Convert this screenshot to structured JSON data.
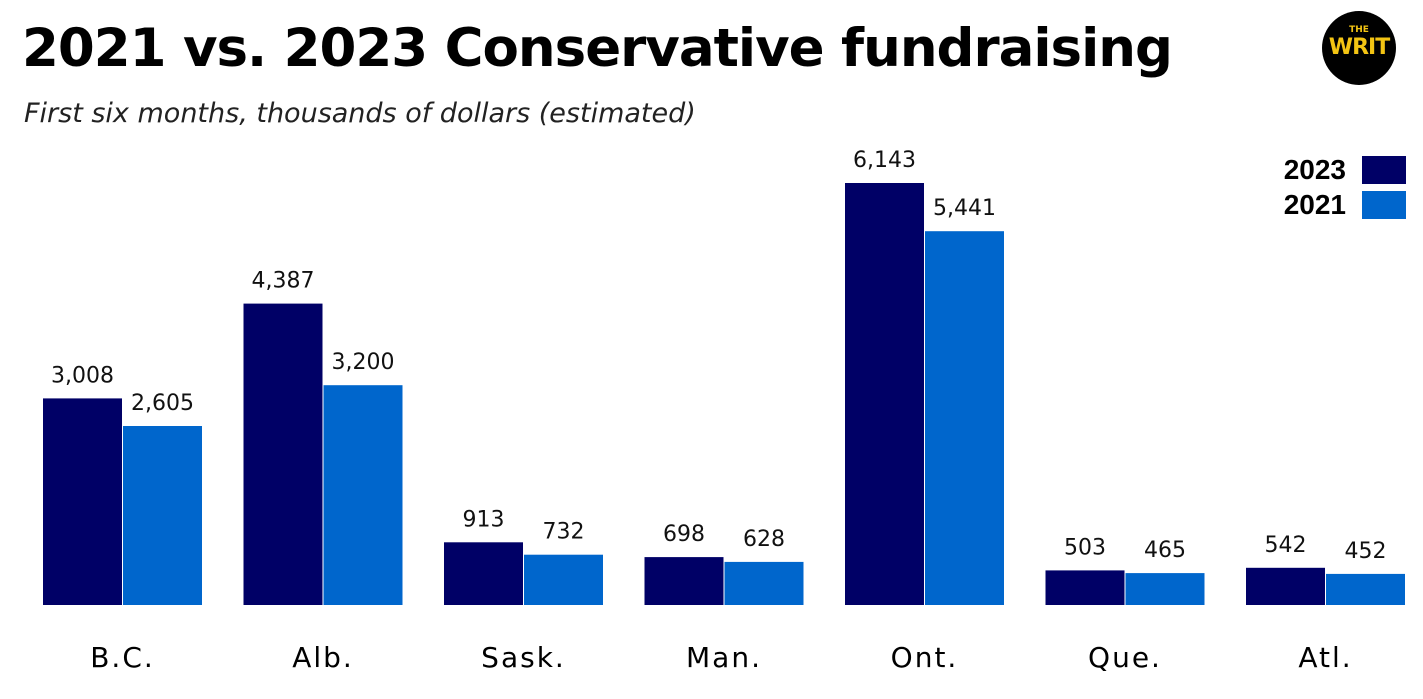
{
  "title": "2021 vs. 2023 Conservative fundraising",
  "subtitle": "First six months, thousands of dollars (estimated)",
  "logo": {
    "small": "THE",
    "big": "WRIT"
  },
  "colors": {
    "series_2023": "#000066",
    "series_2021": "#0066cc",
    "logo_bg": "#000000",
    "logo_text": "#f3c413"
  },
  "legend": [
    {
      "label": "2023",
      "color": "#000066"
    },
    {
      "label": "2021",
      "color": "#0066cc"
    }
  ],
  "chart_data": {
    "type": "bar",
    "categories": [
      "B.C.",
      "Alb.",
      "Sask.",
      "Man.",
      "Ont.",
      "Que.",
      "Atl."
    ],
    "series": [
      {
        "name": "2023",
        "values": [
          3008,
          4387,
          913,
          698,
          6143,
          503,
          542
        ],
        "labels": [
          "3,008",
          "4,387",
          "913",
          "698",
          "6,143",
          "503",
          "542"
        ],
        "color": "#000066"
      },
      {
        "name": "2021",
        "values": [
          2605,
          3200,
          732,
          628,
          5441,
          465,
          452
        ],
        "labels": [
          "2,605",
          "3,200",
          "732",
          "628",
          "5,441",
          "465",
          "452"
        ],
        "color": "#0066cc"
      }
    ],
    "title": "2021 vs. 2023 Conservative fundraising",
    "subtitle": "First six months, thousands of dollars (estimated)",
    "xlabel": "",
    "ylabel": "",
    "ylim": [
      0,
      6143
    ],
    "grid": false,
    "legend_position": "top-right"
  }
}
